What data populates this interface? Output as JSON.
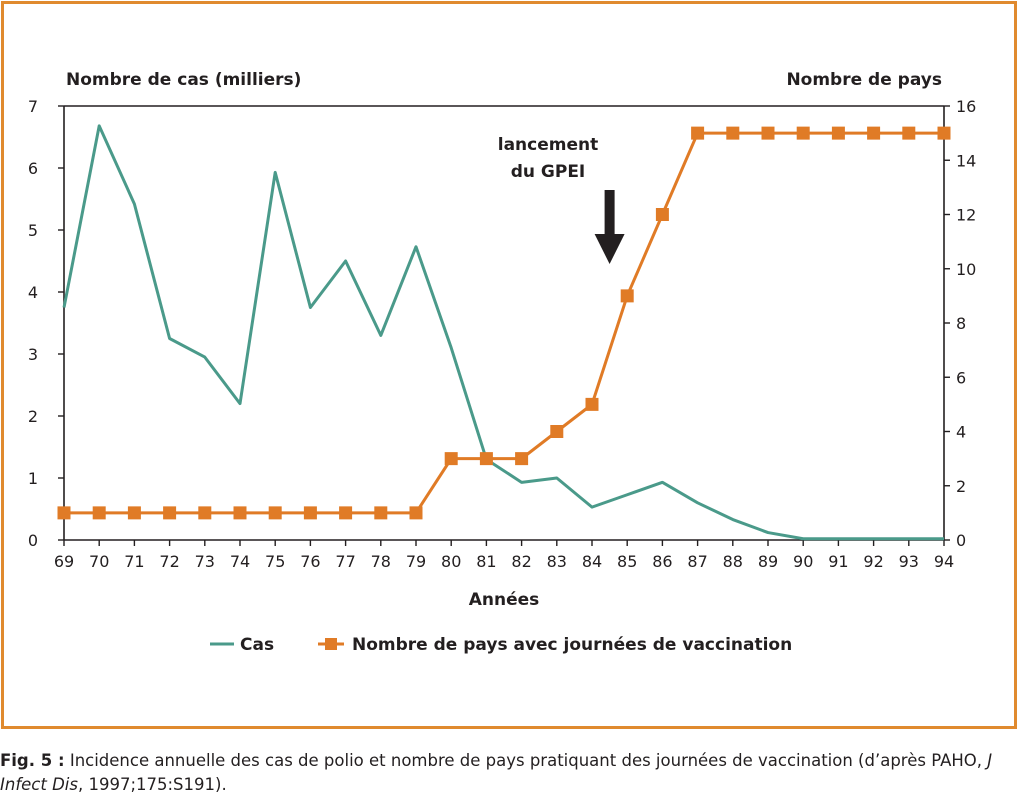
{
  "chart_data": {
    "type": "line",
    "x": [
      69,
      70,
      71,
      72,
      73,
      74,
      75,
      76,
      77,
      78,
      79,
      80,
      81,
      82,
      83,
      84,
      85,
      86,
      87,
      88,
      89,
      90,
      91,
      92,
      93,
      94
    ],
    "xlabel": "Années",
    "ylabel_left": "Nombre de cas (milliers)",
    "ylabel_right": "Nombre de pays",
    "ylim_left": [
      0,
      7
    ],
    "ylim_right": [
      0,
      16
    ],
    "yticks_left": [
      0,
      1,
      2,
      3,
      4,
      5,
      6,
      7
    ],
    "yticks_right": [
      0,
      2,
      4,
      6,
      8,
      10,
      12,
      14,
      16
    ],
    "grid": false,
    "legend_position": "bottom-center",
    "annotation": {
      "line1": "lancement",
      "line2": "du GPEI",
      "x": 84.5
    },
    "series": [
      {
        "name": "Cas",
        "axis": "left",
        "color": "#4a9a8a",
        "marker": "none",
        "values": [
          3.75,
          6.68,
          5.42,
          3.25,
          2.95,
          2.2,
          5.93,
          3.75,
          4.5,
          3.3,
          4.73,
          3.1,
          1.3,
          0.93,
          1.0,
          0.53,
          0.73,
          0.93,
          0.6,
          0.33,
          0.12,
          0.02,
          0.02,
          0.02,
          0.02,
          0.02
        ]
      },
      {
        "name": "Nombre de pays avec journées de vaccination",
        "axis": "right",
        "color": "#e07b26",
        "marker": "square",
        "values": [
          1,
          1,
          1,
          1,
          1,
          1,
          1,
          1,
          1,
          1,
          1,
          3,
          3,
          3,
          4,
          5,
          9,
          12,
          15,
          15,
          15,
          15,
          15,
          15,
          15,
          15
        ]
      }
    ]
  },
  "caption": {
    "label": "Fig. 5 :",
    "text_before_italic": " Incidence annuelle des cas de polio et nombre de pays pratiquant des journées de vaccination (d’après PAHO, ",
    "italic": "J Infect Dis",
    "text_after_italic": ", 1997;175:S191)."
  }
}
